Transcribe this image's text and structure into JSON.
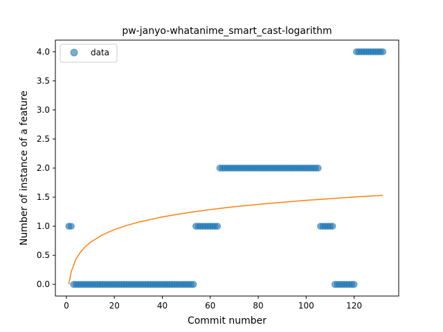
{
  "chart_data": {
    "type": "scatter",
    "title": "pw-janyo-whatanime_smart_cast-logarithm",
    "xlabel": "Commit number",
    "ylabel": "Number of instance of a feature",
    "xlim": [
      -4.6,
      138.6
    ],
    "ylim": [
      -0.2,
      4.2
    ],
    "xticks": [
      0,
      20,
      40,
      60,
      80,
      100,
      120
    ],
    "yticks": [
      0.0,
      0.5,
      1.0,
      1.5,
      2.0,
      2.5,
      3.0,
      3.5,
      4.0
    ],
    "ytick_labels": [
      "0.0",
      "0.5",
      "1.0",
      "1.5",
      "2.0",
      "2.5",
      "3.0",
      "3.5",
      "4.0"
    ],
    "legend": {
      "position": "top-left",
      "entries": [
        "data"
      ]
    },
    "colors": {
      "data": "#1f77b4",
      "fit": "#ff7f0e"
    },
    "series": [
      {
        "name": "data",
        "kind": "points",
        "x": [
          1,
          2,
          3,
          4,
          5,
          6,
          7,
          8,
          9,
          10,
          11,
          12,
          13,
          14,
          15,
          16,
          17,
          18,
          19,
          20,
          21,
          22,
          23,
          24,
          25,
          26,
          27,
          28,
          29,
          30,
          31,
          32,
          33,
          34,
          35,
          36,
          37,
          38,
          39,
          40,
          41,
          42,
          43,
          44,
          45,
          46,
          47,
          48,
          49,
          50,
          51,
          52,
          53,
          54,
          55,
          56,
          57,
          58,
          59,
          60,
          61,
          62,
          63,
          64,
          65,
          66,
          67,
          68,
          69,
          70,
          71,
          72,
          73,
          74,
          75,
          76,
          77,
          78,
          79,
          80,
          81,
          82,
          83,
          84,
          85,
          86,
          87,
          88,
          89,
          90,
          91,
          92,
          93,
          94,
          95,
          96,
          97,
          98,
          99,
          100,
          101,
          102,
          103,
          104,
          105,
          106,
          107,
          108,
          109,
          110,
          111,
          112,
          113,
          114,
          115,
          116,
          117,
          118,
          119,
          120,
          121,
          122,
          123,
          124,
          125,
          126,
          127,
          128,
          129,
          130,
          131,
          132
        ],
        "y": [
          1,
          1,
          0,
          0,
          0,
          0,
          0,
          0,
          0,
          0,
          0,
          0,
          0,
          0,
          0,
          0,
          0,
          0,
          0,
          0,
          0,
          0,
          0,
          0,
          0,
          0,
          0,
          0,
          0,
          0,
          0,
          0,
          0,
          0,
          0,
          0,
          0,
          0,
          0,
          0,
          0,
          0,
          0,
          0,
          0,
          0,
          0,
          0,
          0,
          0,
          0,
          0,
          0,
          1,
          1,
          1,
          1,
          1,
          1,
          1,
          1,
          1,
          1,
          2,
          2,
          2,
          2,
          2,
          2,
          2,
          2,
          2,
          2,
          2,
          2,
          2,
          2,
          2,
          2,
          2,
          2,
          2,
          2,
          2,
          2,
          2,
          2,
          2,
          2,
          2,
          2,
          2,
          2,
          2,
          2,
          2,
          2,
          2,
          2,
          2,
          2,
          2,
          2,
          2,
          2,
          1,
          1,
          1,
          1,
          1,
          1,
          0,
          0,
          0,
          0,
          0,
          0,
          0,
          0,
          0,
          4,
          4,
          4,
          4,
          4,
          4,
          4,
          4,
          4,
          4,
          4,
          4
        ]
      },
      {
        "name": "",
        "kind": "line",
        "x": [
          1,
          2,
          4,
          6,
          8,
          10,
          15,
          20,
          25,
          30,
          40,
          50,
          60,
          70,
          80,
          90,
          100,
          110,
          120,
          132
        ],
        "y": [
          0.0,
          0.216,
          0.436,
          0.563,
          0.653,
          0.723,
          0.851,
          0.942,
          1.012,
          1.069,
          1.16,
          1.23,
          1.287,
          1.335,
          1.376,
          1.412,
          1.445,
          1.474,
          1.502,
          1.532
        ]
      }
    ]
  }
}
